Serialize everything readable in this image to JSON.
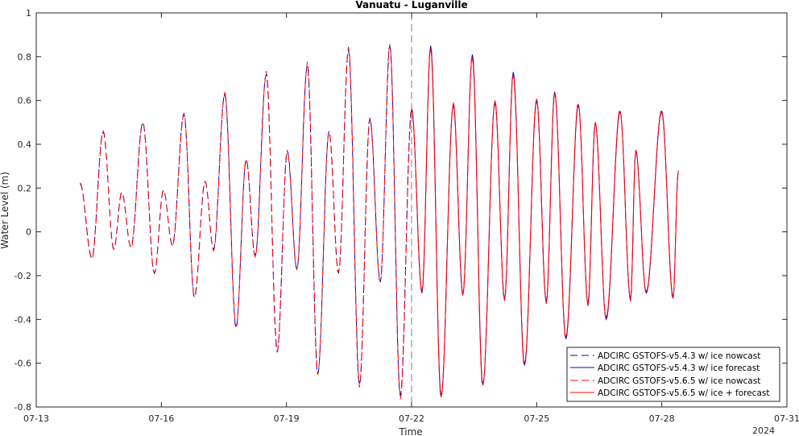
{
  "chart_data": {
    "type": "line",
    "title": "Vanuatu - Luganville",
    "xlabel": "Time",
    "ylabel": "Water Level (m)",
    "year_label": "2024",
    "xlim": [
      "2024-07-13",
      "2024-07-31"
    ],
    "ylim": [
      -0.8,
      1.0
    ],
    "x_ticks": [
      "07-13",
      "07-16",
      "07-19",
      "07-22",
      "07-25",
      "07-28",
      "07-31"
    ],
    "y_ticks": [
      1,
      0.8,
      0.6,
      0.4,
      0.2,
      0,
      -0.2,
      -0.4,
      -0.6,
      -0.8
    ],
    "y_tick_labels": [
      "1",
      "0.8",
      "0.6",
      "0.4",
      "0.2",
      "0",
      "-0.2",
      "-0.4",
      "-0.6",
      "-0.8"
    ],
    "forecast_start": "2024-07-22",
    "grid": false,
    "legend_position": "bottom-right",
    "extrema": [
      [
        "07-14 01:12",
        0.22
      ],
      [
        "07-14 08:00",
        -0.12
      ],
      [
        "07-14 14:30",
        0.46
      ],
      [
        "07-14 20:40",
        -0.08
      ],
      [
        "07-15 01:12",
        0.18
      ],
      [
        "07-15 06:30",
        -0.07
      ],
      [
        "07-15 13:20",
        0.5
      ],
      [
        "07-15 20:00",
        -0.19
      ],
      [
        "07-16 01:12",
        0.19
      ],
      [
        "07-16 06:20",
        -0.06
      ],
      [
        "07-16 13:00",
        0.54
      ],
      [
        "07-16 19:00",
        -0.3
      ],
      [
        "07-17 01:12",
        0.23
      ],
      [
        "07-17 06:00",
        -0.08
      ],
      [
        "07-17 12:30",
        0.63
      ],
      [
        "07-17 19:00",
        -0.44
      ],
      [
        "07-18 00:50",
        0.33
      ],
      [
        "07-18 06:00",
        -0.11
      ],
      [
        "07-18 12:20",
        0.72
      ],
      [
        "07-18 18:40",
        -0.55
      ],
      [
        "07-19 00:30",
        0.37
      ],
      [
        "07-19 06:00",
        -0.17
      ],
      [
        "07-19 12:00",
        0.76
      ],
      [
        "07-19 18:00",
        -0.65
      ],
      [
        "07-20 00:30",
        0.46
      ],
      [
        "07-20 06:00",
        -0.19
      ],
      [
        "07-20 11:40",
        0.83
      ],
      [
        "07-20 18:00",
        -0.7
      ],
      [
        "07-21 00:00",
        0.52
      ],
      [
        "07-21 06:00",
        -0.23
      ],
      [
        "07-21 11:30",
        0.85
      ],
      [
        "07-21 17:30",
        -0.75
      ],
      [
        "07-22 00:00",
        0.56
      ],
      [
        "07-22 06:00",
        -0.28
      ],
      [
        "07-22 11:00",
        0.85
      ],
      [
        "07-22 17:00",
        -0.75
      ],
      [
        "07-23 00:00",
        0.58
      ],
      [
        "07-23 05:30",
        -0.29
      ],
      [
        "07-23 11:00",
        0.81
      ],
      [
        "07-23 17:00",
        -0.7
      ],
      [
        "07-24 00:00",
        0.59
      ],
      [
        "07-24 05:30",
        -0.31
      ],
      [
        "07-24 10:30",
        0.73
      ],
      [
        "07-24 17:00",
        -0.61
      ],
      [
        "07-25 00:00",
        0.6
      ],
      [
        "07-25 05:30",
        -0.32
      ],
      [
        "07-25 10:20",
        0.64
      ],
      [
        "07-25 16:50",
        -0.49
      ],
      [
        "07-26 00:00",
        0.58
      ],
      [
        "07-26 05:30",
        -0.33
      ],
      [
        "07-26 09:40",
        0.5
      ],
      [
        "07-26 16:00",
        -0.4
      ],
      [
        "07-27 00:00",
        0.55
      ],
      [
        "07-27 06:00",
        -0.31
      ],
      [
        "07-27 09:00",
        0.37
      ],
      [
        "07-27 15:00",
        -0.28
      ],
      [
        "07-28 00:00",
        0.55
      ],
      [
        "07-28 06:30",
        -0.3
      ],
      [
        "07-28 09:30",
        0.28
      ]
    ],
    "series": [
      {
        "name": "ADCIRC GSTOFS-v5.4.3 w/ ice nowcast",
        "color": "#0000cc",
        "dash": "dashed",
        "x_range": [
          "07-14",
          "07-22"
        ]
      },
      {
        "name": "ADCIRC GSTOFS-v5.4.3 w/ ice forecast",
        "color": "#0000cc",
        "dash": "solid",
        "x_range": [
          "07-22",
          "07-29"
        ]
      },
      {
        "name": "ADCIRC GSTOFS-v5.6.5 w/ ice nowcast",
        "color": "#ff0000",
        "dash": "dashed",
        "x_range": [
          "07-14",
          "07-22"
        ]
      },
      {
        "name": "ADCIRC GSTOFS-v5.6.5 w/ ice + forecast",
        "color": "#ff0000",
        "dash": "solid",
        "x_range": [
          "07-22",
          "07-29"
        ]
      }
    ]
  }
}
